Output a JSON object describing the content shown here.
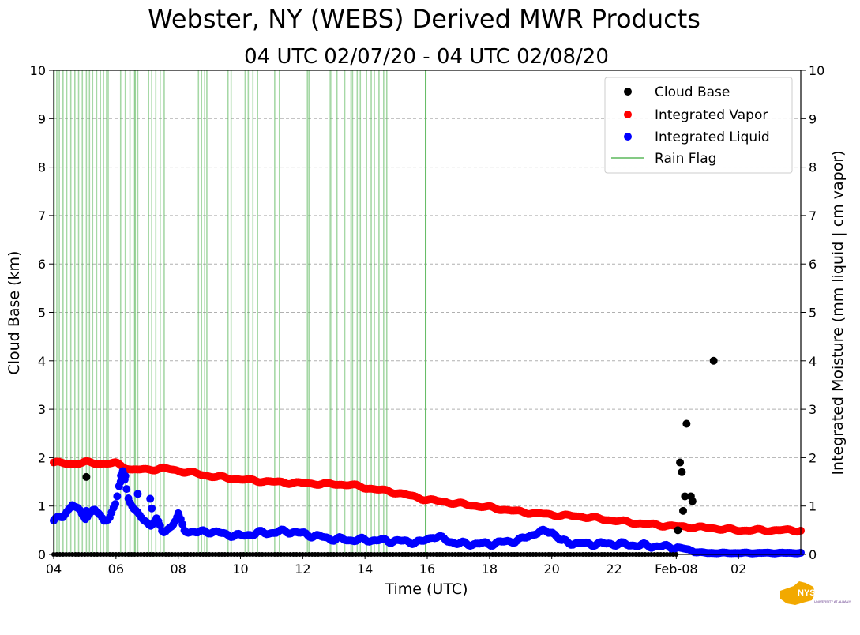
{
  "chart_data": {
    "type": "scatter",
    "title": "Webster, NY (WEBS) Derived MWR Products",
    "subtitle": "04 UTC 02/07/20 - 04 UTC 02/08/20",
    "xlabel": "Time (UTC)",
    "ylabel_left": "Cloud Base (km)",
    "ylabel_right": "Integrated Moisture (mm liquid | cm vapor)",
    "xlim_hours": [
      0,
      24
    ],
    "ylim": [
      0,
      10
    ],
    "grid": true,
    "legend_position": "top-right",
    "x_ticks": [
      {
        "h": 0,
        "label": "04"
      },
      {
        "h": 2,
        "label": "06"
      },
      {
        "h": 4,
        "label": "08"
      },
      {
        "h": 6,
        "label": "10"
      },
      {
        "h": 8,
        "label": "12"
      },
      {
        "h": 10,
        "label": "14"
      },
      {
        "h": 12,
        "label": "16"
      },
      {
        "h": 14,
        "label": "18"
      },
      {
        "h": 16,
        "label": "20"
      },
      {
        "h": 18,
        "label": "22"
      },
      {
        "h": 20,
        "label": "Feb-08"
      },
      {
        "h": 22,
        "label": "02"
      }
    ],
    "y_ticks": [
      "0",
      "1",
      "2",
      "3",
      "4",
      "5",
      "6",
      "7",
      "8",
      "9",
      "10"
    ],
    "legend": [
      {
        "label": "Cloud Base",
        "color": "#000000",
        "kind": "dot"
      },
      {
        "label": "Integrated Vapor",
        "color": "#ff0000",
        "kind": "dot"
      },
      {
        "label": "Integrated Liquid",
        "color": "#0000ff",
        "kind": "dot"
      },
      {
        "label": "Rain Flag",
        "color": "#5cb85c",
        "kind": "line"
      }
    ],
    "cloud_base": {
      "name": "Cloud Base",
      "color": "#000000",
      "points": [
        [
          1.05,
          1.6
        ],
        [
          20.05,
          0.5
        ],
        [
          20.12,
          1.9
        ],
        [
          20.18,
          1.7
        ],
        [
          20.22,
          0.9
        ],
        [
          20.28,
          1.2
        ],
        [
          20.33,
          2.7
        ],
        [
          20.47,
          1.2
        ],
        [
          20.52,
          1.1
        ],
        [
          21.2,
          4.0
        ]
      ],
      "baseline": [
        0,
        20.1,
        0.0
      ]
    },
    "integrated_vapor": {
      "name": "Integrated Vapor",
      "color": "#ff0000",
      "key": [
        [
          0,
          1.9
        ],
        [
          0.5,
          1.87
        ],
        [
          1,
          1.9
        ],
        [
          1.5,
          1.88
        ],
        [
          2,
          1.88
        ],
        [
          2.5,
          1.75
        ],
        [
          3,
          1.75
        ],
        [
          3.5,
          1.78
        ],
        [
          4,
          1.73
        ],
        [
          4.5,
          1.68
        ],
        [
          5,
          1.62
        ],
        [
          6,
          1.55
        ],
        [
          7,
          1.5
        ],
        [
          8,
          1.47
        ],
        [
          9,
          1.45
        ],
        [
          9.5,
          1.44
        ],
        [
          10,
          1.38
        ],
        [
          11,
          1.28
        ],
        [
          12,
          1.13
        ],
        [
          13,
          1.05
        ],
        [
          14,
          0.97
        ],
        [
          15,
          0.88
        ],
        [
          16,
          0.82
        ],
        [
          17,
          0.78
        ],
        [
          18,
          0.7
        ],
        [
          19,
          0.63
        ],
        [
          20,
          0.58
        ],
        [
          21,
          0.55
        ],
        [
          22,
          0.5
        ],
        [
          23,
          0.5
        ],
        [
          24,
          0.5
        ]
      ]
    },
    "integrated_liquid": {
      "name": "Integrated Liquid",
      "color": "#0000ff",
      "key": [
        [
          0,
          0.7
        ],
        [
          0.3,
          0.78
        ],
        [
          0.6,
          1.05
        ],
        [
          0.8,
          0.9
        ],
        [
          1,
          0.75
        ],
        [
          1.3,
          0.95
        ],
        [
          1.6,
          0.68
        ],
        [
          1.8,
          0.8
        ],
        [
          2,
          1.05
        ],
        [
          2.2,
          1.75
        ],
        [
          2.4,
          1.2
        ],
        [
          2.6,
          0.9
        ],
        [
          2.9,
          0.7
        ],
        [
          3.1,
          0.62
        ],
        [
          3.3,
          0.72
        ],
        [
          3.5,
          0.45
        ],
        [
          3.8,
          0.6
        ],
        [
          4,
          0.8
        ],
        [
          4.2,
          0.5
        ],
        [
          4.6,
          0.45
        ],
        [
          5,
          0.48
        ],
        [
          5.5,
          0.42
        ],
        [
          6,
          0.38
        ],
        [
          6.5,
          0.44
        ],
        [
          7,
          0.45
        ],
        [
          7.5,
          0.48
        ],
        [
          8,
          0.43
        ],
        [
          8.5,
          0.37
        ],
        [
          9,
          0.32
        ],
        [
          9.5,
          0.3
        ],
        [
          10,
          0.3
        ],
        [
          11,
          0.28
        ],
        [
          11.8,
          0.25
        ],
        [
          12.2,
          0.38
        ],
        [
          12.6,
          0.3
        ],
        [
          13,
          0.22
        ],
        [
          14,
          0.22
        ],
        [
          15,
          0.3
        ],
        [
          15.5,
          0.45
        ],
        [
          16,
          0.48
        ],
        [
          16.3,
          0.28
        ],
        [
          16.5,
          0.25
        ],
        [
          17,
          0.22
        ],
        [
          18,
          0.22
        ],
        [
          19,
          0.18
        ],
        [
          20,
          0.15
        ],
        [
          20.4,
          0.1
        ],
        [
          20.6,
          0.05
        ],
        [
          21,
          0.03
        ],
        [
          22,
          0.03
        ],
        [
          24,
          0.03
        ]
      ],
      "extra_points": [
        [
          1.05,
          0.9
        ],
        [
          3.1,
          1.15
        ],
        [
          3.15,
          0.95
        ],
        [
          2.7,
          1.25
        ],
        [
          4.0,
          0.85
        ],
        [
          2.15,
          1.5
        ],
        [
          2.3,
          1.62
        ]
      ]
    },
    "rain_flag": {
      "name": "Rain Flag",
      "color": "#5cb85c",
      "times": [
        0.02,
        0.1,
        0.18,
        0.3,
        0.42,
        0.55,
        0.68,
        0.8,
        0.92,
        1.05,
        1.15,
        1.25,
        1.38,
        1.5,
        1.6,
        1.7,
        1.75,
        2.15,
        2.3,
        2.45,
        2.6,
        2.62,
        2.7,
        3.05,
        3.15,
        3.28,
        3.42,
        3.55,
        4.65,
        4.75,
        4.85,
        4.92,
        5.6,
        5.7,
        6.15,
        6.25,
        6.4,
        6.55,
        7.1,
        7.25,
        8.15,
        8.2,
        8.85,
        8.9,
        9.1,
        9.35,
        9.55,
        9.6,
        9.75,
        9.85,
        10.05,
        10.2,
        10.3,
        10.45,
        10.6,
        10.7,
        11.95
      ]
    }
  },
  "logo": {
    "text": "NYS Mesonet",
    "sub": "UNIVERSITY AT ALBANY"
  }
}
